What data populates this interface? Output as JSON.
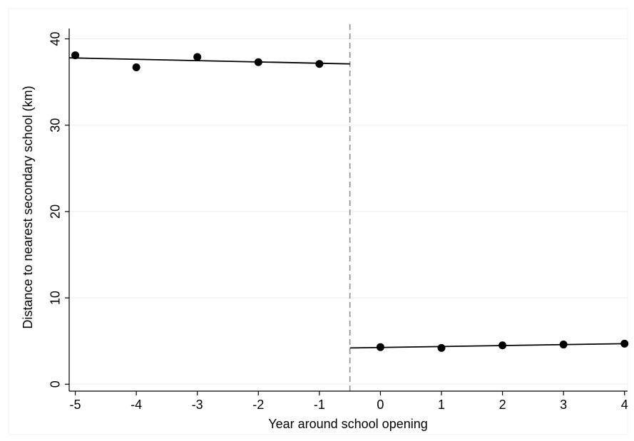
{
  "chart_data": {
    "type": "scatter",
    "title": "",
    "xlabel": "Year around school opening",
    "ylabel": "Distance to nearest secondary school (km)",
    "x_ticks": [
      "-5",
      "-4",
      "-3",
      "-2",
      "-1",
      "0",
      "1",
      "2",
      "3",
      "4"
    ],
    "y_ticks": [
      "0",
      "10",
      "20",
      "30",
      "40"
    ],
    "xlim": [
      -5.1,
      4.05
    ],
    "ylim": [
      -0.8,
      41.2
    ],
    "grid": "horizontal",
    "cutoff_x": -0.5,
    "points": {
      "x": [
        -5,
        -4,
        -3,
        -2,
        -1,
        0,
        1,
        2,
        3,
        4
      ],
      "y": [
        38.1,
        36.7,
        37.9,
        37.3,
        37.1,
        4.3,
        4.2,
        4.5,
        4.6,
        4.7
      ]
    },
    "fit_lines": [
      {
        "x": [
          -5.1,
          -0.5
        ],
        "y": [
          37.8,
          37.1
        ]
      },
      {
        "x": [
          -0.5,
          4.0
        ],
        "y": [
          4.2,
          4.7
        ]
      }
    ],
    "colors": {
      "points": "#000000",
      "fit_line": "#000000",
      "cutoff_line": "#8c8c8c",
      "grid": "#eeeeee",
      "axis": "#000000"
    }
  }
}
